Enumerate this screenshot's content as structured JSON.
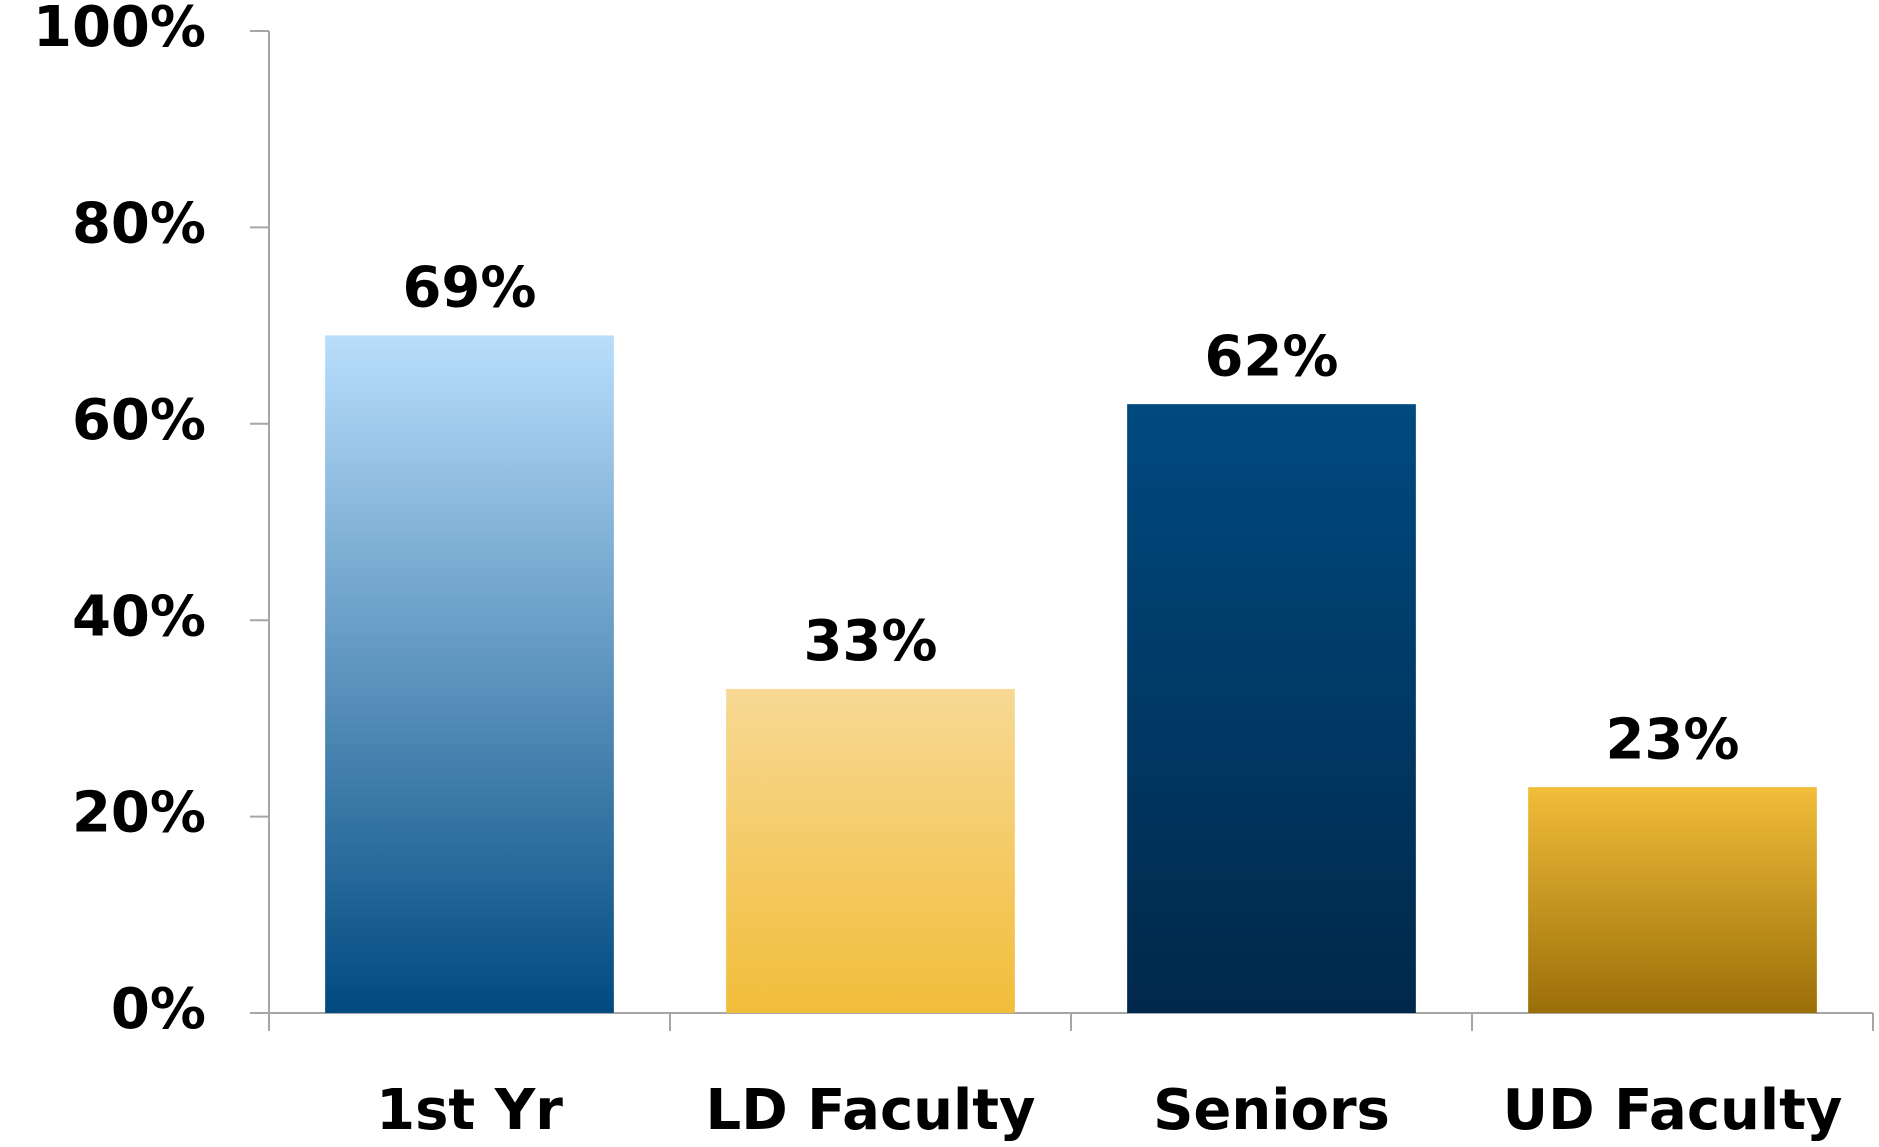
{
  "chart_data": {
    "type": "bar",
    "categories": [
      "1st Yr",
      "LD Faculty",
      "Seniors",
      "UD Faculty"
    ],
    "values": [
      69,
      33,
      62,
      23
    ],
    "value_labels": [
      "69%",
      "33%",
      "62%",
      "23%"
    ],
    "colors": [
      [
        "#b9defc",
        "#004a80"
      ],
      [
        "#f7d994",
        "#f2bd3a"
      ],
      [
        "#004a80",
        "#00284a"
      ],
      [
        "#f2bd3a",
        "#9a6f08"
      ]
    ],
    "ylim": [
      0,
      100
    ],
    "yticks": [
      {
        "value": 0,
        "label": "0%"
      },
      {
        "value": 20,
        "label": "20%"
      },
      {
        "value": 40,
        "label": "40%"
      },
      {
        "value": 60,
        "label": "60%"
      },
      {
        "value": 80,
        "label": "80%"
      },
      {
        "value": 100,
        "label": "100%"
      }
    ],
    "grid": false
  }
}
